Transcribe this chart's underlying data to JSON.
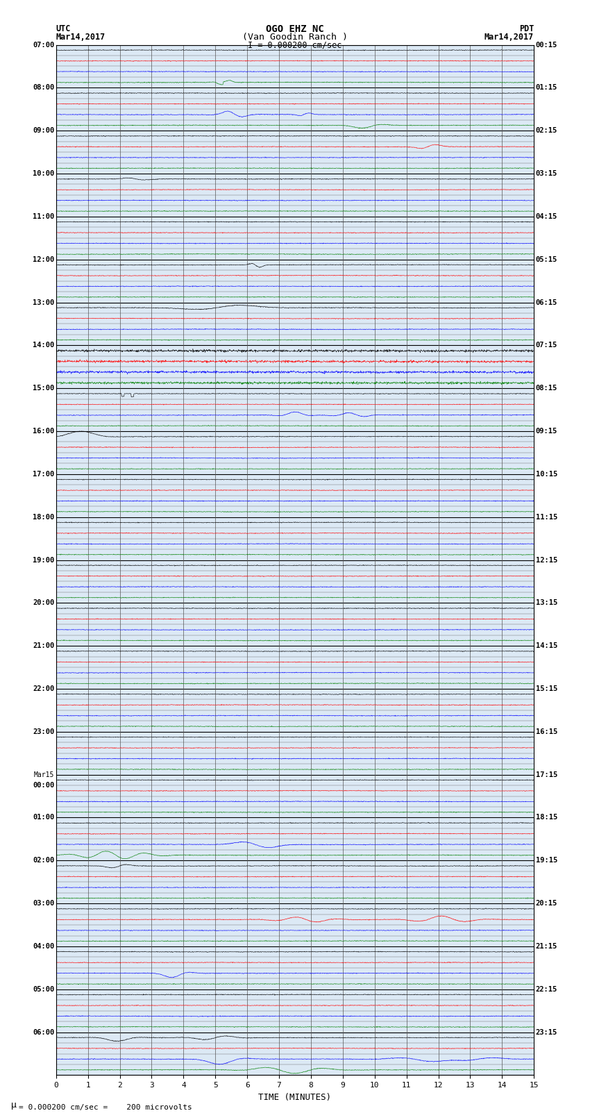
{
  "title_line1": "OGO EHZ NC",
  "title_line2": "(Van Goodin Ranch )",
  "title_line3": "I = 0.000200 cm/sec",
  "left_header_line1": "UTC",
  "left_header_line2": "Mar14,2017",
  "right_header_line1": "PDT",
  "right_header_line2": "Mar14,2017",
  "xlabel": "TIME (MINUTES)",
  "footer": "= 0.000200 cm/sec =    200 microvolts",
  "background_color": "#ffffff",
  "trace_colors": [
    "black",
    "red",
    "blue",
    "green"
  ],
  "num_hours": 24,
  "minutes_per_row": 15,
  "seed": 42,
  "dpi": 100,
  "figwidth": 8.5,
  "figheight": 16.13,
  "left_times_utc": [
    "07:00",
    "",
    "",
    "",
    "08:00",
    "",
    "",
    "",
    "09:00",
    "",
    "",
    "",
    "10:00",
    "",
    "",
    "",
    "11:00",
    "",
    "",
    "",
    "12:00",
    "",
    "",
    "",
    "13:00",
    "",
    "",
    "",
    "14:00",
    "",
    "",
    "",
    "15:00",
    "",
    "",
    "",
    "16:00",
    "",
    "",
    "",
    "17:00",
    "",
    "",
    "",
    "18:00",
    "",
    "",
    "",
    "19:00",
    "",
    "",
    "",
    "20:00",
    "",
    "",
    "",
    "21:00",
    "",
    "",
    "",
    "22:00",
    "",
    "",
    "",
    "23:00",
    "",
    "",
    "",
    "Mar15",
    "00:00",
    "",
    "",
    "01:00",
    "",
    "",
    "",
    "02:00",
    "",
    "",
    "",
    "03:00",
    "",
    "",
    "",
    "04:00",
    "",
    "",
    "",
    "05:00",
    "",
    "",
    "",
    "06:00",
    "",
    "",
    ""
  ],
  "right_times_pdt": [
    "00:15",
    "",
    "",
    "",
    "01:15",
    "",
    "",
    "",
    "02:15",
    "",
    "",
    "",
    "03:15",
    "",
    "",
    "",
    "04:15",
    "",
    "",
    "",
    "05:15",
    "",
    "",
    "",
    "06:15",
    "",
    "",
    "",
    "07:15",
    "",
    "",
    "",
    "08:15",
    "",
    "",
    "",
    "09:15",
    "",
    "",
    "",
    "10:15",
    "",
    "",
    "",
    "11:15",
    "",
    "",
    "",
    "12:15",
    "",
    "",
    "",
    "13:15",
    "",
    "",
    "",
    "14:15",
    "",
    "",
    "",
    "15:15",
    "",
    "",
    "",
    "16:15",
    "",
    "",
    "",
    "17:15",
    "",
    "",
    "",
    "18:15",
    "",
    "",
    "",
    "19:15",
    "",
    "",
    "",
    "20:15",
    "",
    "",
    "",
    "21:15",
    "",
    "",
    "",
    "22:15",
    "",
    "",
    "",
    "23:15",
    "",
    "",
    ""
  ]
}
